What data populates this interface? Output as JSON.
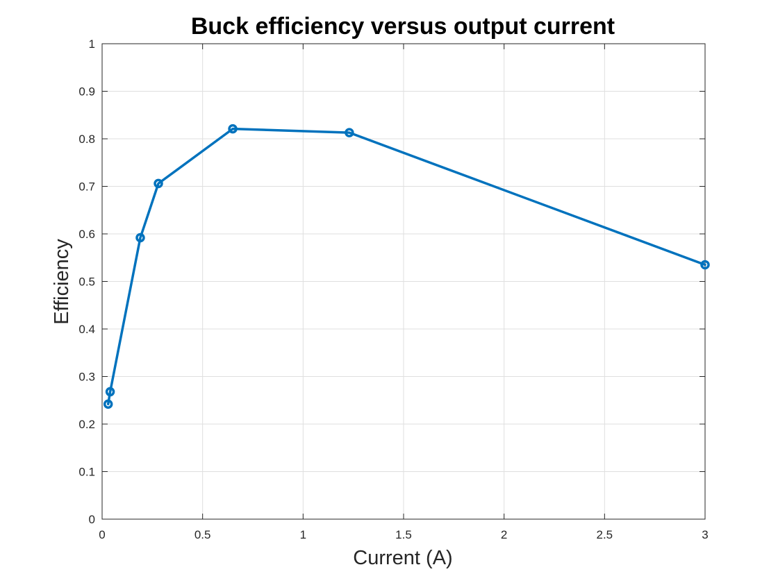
{
  "chart_data": {
    "type": "line",
    "title": "Buck efficiency versus output current",
    "xlabel": "Current (A)",
    "ylabel": "Efficiency",
    "xlim": [
      0,
      3
    ],
    "ylim": [
      0,
      1
    ],
    "xticks": [
      0,
      0.5,
      1,
      1.5,
      2,
      2.5,
      3
    ],
    "xtick_labels": [
      "0",
      "0.5",
      "1",
      "1.5",
      "2",
      "2.5",
      "3"
    ],
    "yticks": [
      0,
      0.1,
      0.2,
      0.3,
      0.4,
      0.5,
      0.6,
      0.7,
      0.8,
      0.9,
      1
    ],
    "ytick_labels": [
      "0",
      "0.1",
      "0.2",
      "0.3",
      "0.4",
      "0.5",
      "0.6",
      "0.7",
      "0.8",
      "0.9",
      "1"
    ],
    "grid": true,
    "marker": "circle",
    "series": [
      {
        "color": "#0072bd",
        "x": [
          0.03,
          0.04,
          0.19,
          0.28,
          0.65,
          1.23,
          3.0
        ],
        "y": [
          0.242,
          0.268,
          0.592,
          0.706,
          0.821,
          0.813,
          0.535
        ]
      }
    ]
  }
}
